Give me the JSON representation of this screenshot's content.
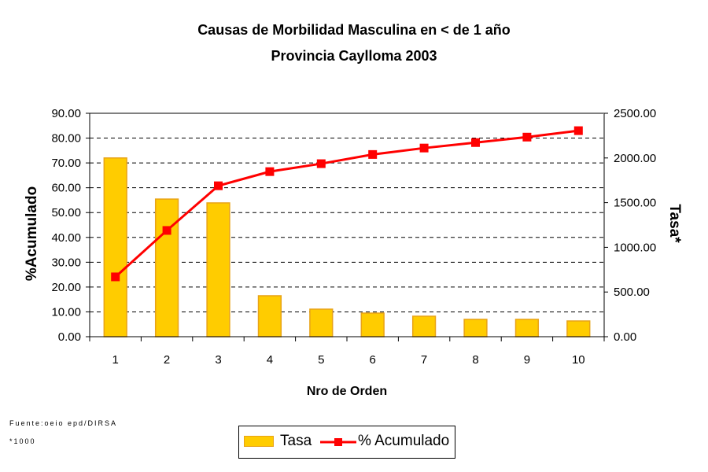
{
  "chart_data": {
    "type": "bar",
    "title": "Causas de Morbilidad Masculina en < de 1 año",
    "subtitle": "Provincia Caylloma 2003",
    "xlabel": "Nro de Orden",
    "ylabel_left": "%Acumulado",
    "ylabel_right": "Tasa*",
    "categories": [
      "1",
      "2",
      "3",
      "4",
      "5",
      "6",
      "7",
      "8",
      "9",
      "10"
    ],
    "ylim_left": [
      0,
      90
    ],
    "ylim_right": [
      0,
      2500
    ],
    "yticks_left": [
      "0.00",
      "10.00",
      "20.00",
      "30.00",
      "40.00",
      "50.00",
      "60.00",
      "70.00",
      "80.00",
      "90.00"
    ],
    "yticks_right": [
      "0.00",
      "500.00",
      "1000.00",
      "1500.00",
      "2000.00",
      "2500.00"
    ],
    "grid": true,
    "legend_position": "bottom",
    "series": [
      {
        "name": "Tasa",
        "type": "bar",
        "axis": "right",
        "color": "#FFCC00",
        "edge": "#E8A317",
        "values": [
          2000,
          1540,
          1497,
          458,
          308,
          264,
          229,
          194,
          194,
          176
        ]
      },
      {
        "name": "% Acumulado",
        "type": "line",
        "axis": "left",
        "color": "#FF0000",
        "values": [
          24.1,
          42.8,
          60.8,
          66.5,
          69.7,
          73.4,
          76.0,
          78.2,
          80.4,
          83.0
        ]
      }
    ]
  },
  "footer": {
    "source": "Fuente:oeio epd/DIRSA",
    "note": "*1000"
  },
  "legend": {
    "bar_label": "Tasa",
    "line_label": "% Acumulado"
  }
}
